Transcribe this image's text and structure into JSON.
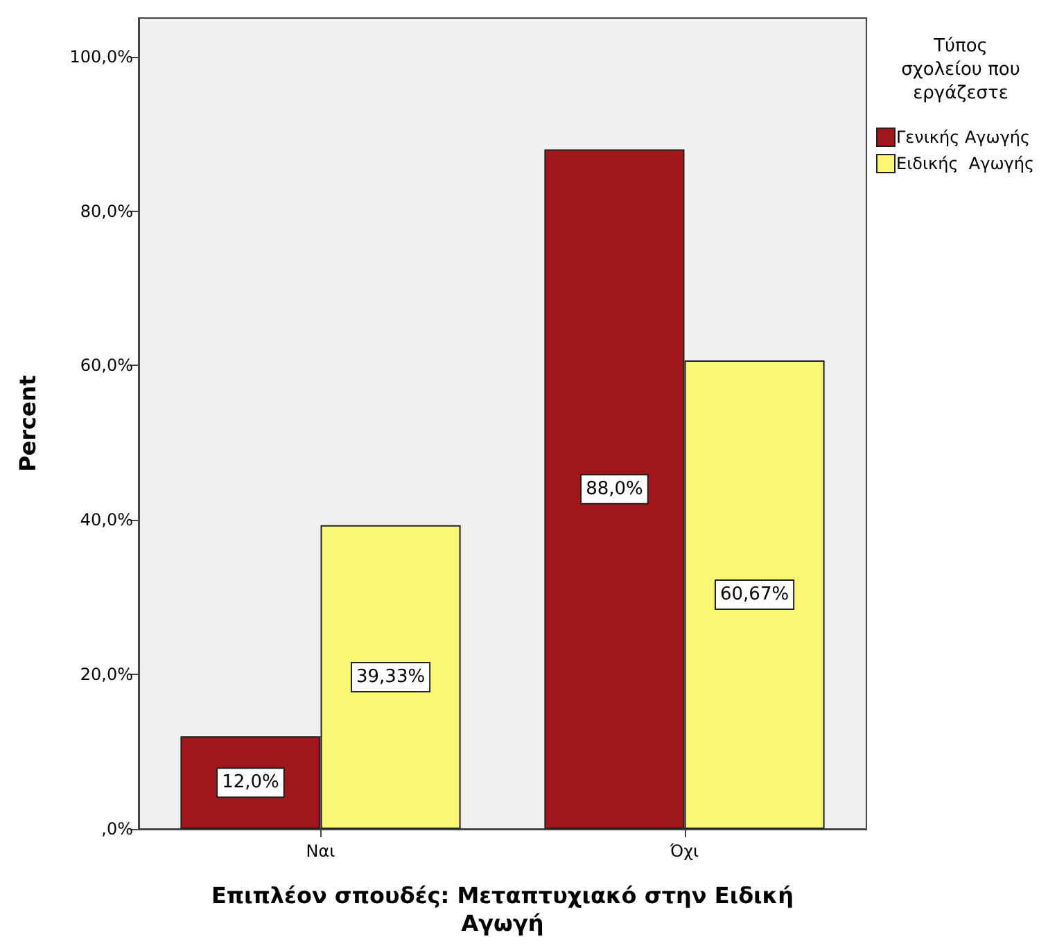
{
  "chart_data": {
    "type": "bar",
    "xlabel": "Επιπλέον σπουδές: Μεταπτυχιακό στην Ειδική Αγωγή",
    "ylabel": "Percent",
    "legend_title": "Τύπος σχολείου που εργάζεστε",
    "categories": [
      "Ναι",
      "Όχι"
    ],
    "series": [
      {
        "name": "Γενικής Αγωγής",
        "color": "#a0161b",
        "values": [
          12.0,
          88.0
        ],
        "value_labels": [
          "12,0%",
          "88,0%"
        ]
      },
      {
        "name": "Ειδικής  Αγωγής",
        "color": "#f9f673",
        "values": [
          39.33,
          60.67
        ],
        "value_labels": [
          "39,33%",
          "60,67%"
        ]
      }
    ],
    "ylim": [
      0,
      105
    ],
    "yticks": [
      {
        "value": 0,
        "label": ",0%"
      },
      {
        "value": 20,
        "label": "20,0%"
      },
      {
        "value": 40,
        "label": "40,0%"
      },
      {
        "value": 60,
        "label": "60,0%"
      },
      {
        "value": 80,
        "label": "80,0%"
      },
      {
        "value": 100,
        "label": "100,0%"
      }
    ],
    "legend": "right"
  }
}
